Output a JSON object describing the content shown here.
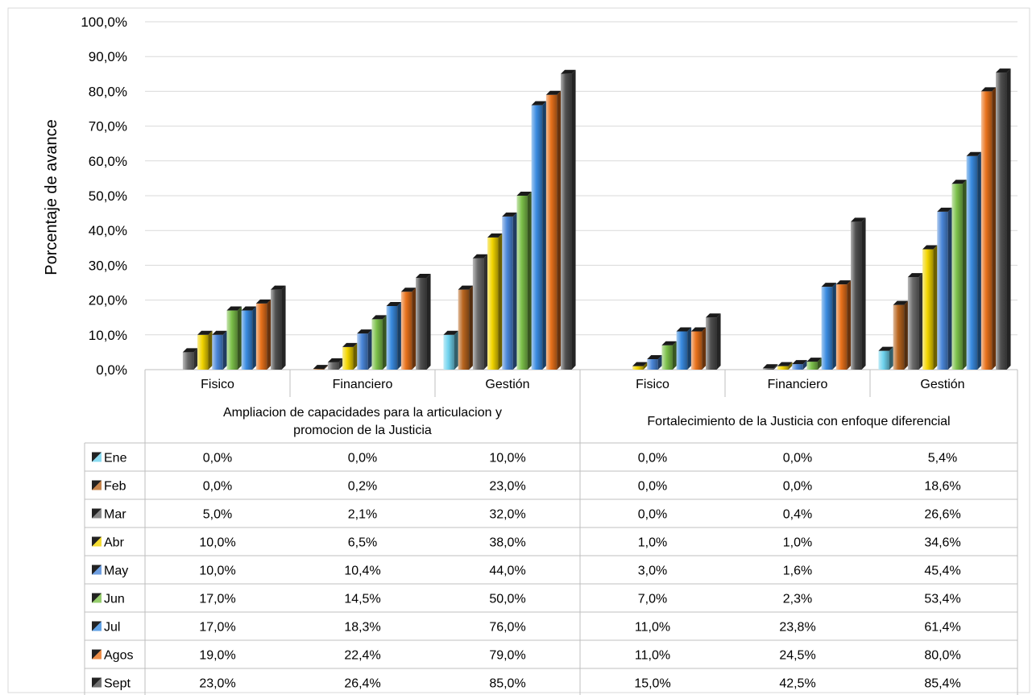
{
  "chart_data": {
    "type": "bar",
    "ylabel": "Porcentaje de avance",
    "ylim": [
      0,
      100
    ],
    "yticks": [
      "0,0%",
      "10,0%",
      "20,0%",
      "30,0%",
      "40,0%",
      "50,0%",
      "60,0%",
      "70,0%",
      "80,0%",
      "90,0%",
      "100,0%"
    ],
    "grid": true,
    "legend": "data-table",
    "groups": [
      {
        "label": "Ampliacion de capacidades para la articulacion y promocion de la Justicia",
        "label_lines": [
          "Ampliacion de capacidades para la articulacion y",
          "promocion de la Justicia"
        ],
        "categories": [
          "Fisico",
          "Financiero",
          "Gestión"
        ]
      },
      {
        "label": "Fortalecimiento de la Justicia con enfoque diferencial",
        "label_lines": [
          "Fortalecimiento de la Justicia con enfoque diferencial"
        ],
        "categories": [
          "Fisico",
          "Financiero",
          "Gestión"
        ]
      }
    ],
    "series": [
      {
        "name": "Ene",
        "color": "#6fd3ee",
        "values": [
          0.0,
          0.0,
          10.0,
          0.0,
          0.0,
          5.4
        ],
        "labels": [
          "0,0%",
          "0,0%",
          "10,0%",
          "0,0%",
          "0,0%",
          "5,4%"
        ]
      },
      {
        "name": "Feb",
        "color": "#b8651f",
        "values": [
          0.0,
          0.2,
          23.0,
          0.0,
          0.0,
          18.6
        ],
        "labels": [
          "0,0%",
          "0,2%",
          "23,0%",
          "0,0%",
          "0,0%",
          "18,6%"
        ]
      },
      {
        "name": "Mar",
        "color": "#6b6b6b",
        "values": [
          5.0,
          2.1,
          32.0,
          0.0,
          0.4,
          26.6
        ],
        "labels": [
          "5,0%",
          "2,1%",
          "32,0%",
          "0,0%",
          "0,4%",
          "26,6%"
        ]
      },
      {
        "name": "Abr",
        "color": "#f2d500",
        "values": [
          10.0,
          6.5,
          38.0,
          1.0,
          1.0,
          34.6
        ],
        "labels": [
          "10,0%",
          "6,5%",
          "38,0%",
          "1,0%",
          "1,0%",
          "34,6%"
        ]
      },
      {
        "name": "May",
        "color": "#4a86d8",
        "values": [
          10.0,
          10.4,
          44.0,
          3.0,
          1.6,
          45.4
        ],
        "labels": [
          "10,0%",
          "10,4%",
          "44,0%",
          "3,0%",
          "1,6%",
          "45,4%"
        ]
      },
      {
        "name": "Jun",
        "color": "#7cc04a",
        "values": [
          17.0,
          14.5,
          50.0,
          7.0,
          2.3,
          53.4
        ],
        "labels": [
          "17,0%",
          "14,5%",
          "50,0%",
          "7,0%",
          "2,3%",
          "53,4%"
        ]
      },
      {
        "name": "Jul",
        "color": "#3a8be0",
        "values": [
          17.0,
          18.3,
          76.0,
          11.0,
          23.8,
          61.4
        ],
        "labels": [
          "17,0%",
          "18,3%",
          "76,0%",
          "11,0%",
          "23,8%",
          "61,4%"
        ]
      },
      {
        "name": "Agos",
        "color": "#e8721c",
        "values": [
          19.0,
          22.4,
          79.0,
          11.0,
          24.5,
          80.0
        ],
        "labels": [
          "19,0%",
          "22,4%",
          "79,0%",
          "11,0%",
          "24,5%",
          "80,0%"
        ]
      },
      {
        "name": "Sept",
        "color": "#4f4f4f",
        "values": [
          23.0,
          26.4,
          85.0,
          15.0,
          42.5,
          85.4
        ],
        "labels": [
          "23,0%",
          "26,4%",
          "85,0%",
          "15,0%",
          "42,5%",
          "85,4%"
        ]
      }
    ]
  }
}
